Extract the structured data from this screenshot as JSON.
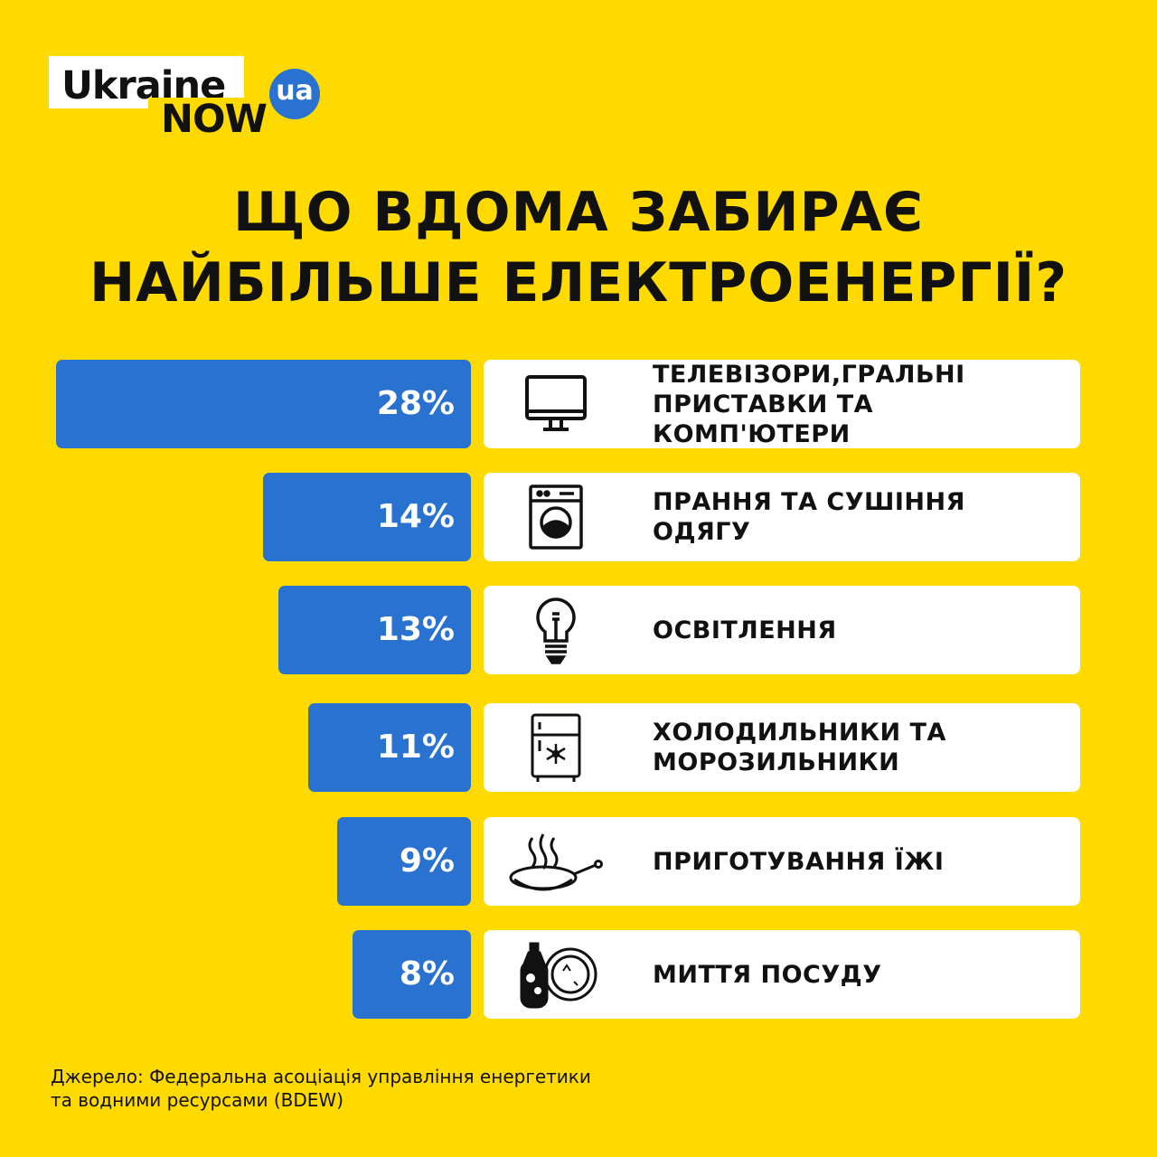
{
  "logo": {
    "line1": "Ukraine",
    "line2": "NOW",
    "badge": "ua"
  },
  "title": {
    "line1": "ЩО ВДОМА ЗАБИРАЄ",
    "line2": "НАЙБІЛЬШЕ ЕЛЕКТРОЕНЕРГІЇ?"
  },
  "chart_data": {
    "type": "bar",
    "orientation": "horizontal",
    "categories": [
      "ТЕЛЕВІЗОРИ,ГРАЛЬНІ ПРИСТАВКИ ТА КОМП'ЮТЕРИ",
      "ПРАННЯ ТА СУШІННЯ ОДЯГУ",
      "ОСВІТЛЕННЯ",
      "ХОЛОДИЛЬНИКИ ТА МОРОЗИЛЬНИКИ",
      "ПРИГОТУВАННЯ ЇЖІ",
      "МИТТЯ ПОСУДУ"
    ],
    "label_lines": [
      [
        "ТЕЛЕВІЗОРИ,ГРАЛЬНІ",
        "ПРИСТАВКИ ТА КОМП'ЮТЕРИ"
      ],
      [
        "ПРАННЯ ТА СУШІННЯ",
        "ОДЯГУ"
      ],
      [
        "ОСВІТЛЕННЯ"
      ],
      [
        "ХОЛОДИЛЬНИКИ ТА",
        "МОРОЗИЛЬНИКИ"
      ],
      [
        "ПРИГОТУВАННЯ ЇЖІ"
      ],
      [
        "МИТТЯ ПОСУДУ"
      ]
    ],
    "values": [
      28,
      14,
      13,
      11,
      9,
      8
    ],
    "value_labels": [
      "28%",
      "14%",
      "13%",
      "11%",
      "9%",
      "8%"
    ],
    "icons": [
      "monitor-icon",
      "washing-machine-icon",
      "light-bulb-icon",
      "fridge-icon",
      "frying-pan-icon",
      "dish-soap-plate-icon"
    ],
    "bar_color": "#2A72CF"
  },
  "source": {
    "line1": "Джерело: Федеральна асоціація управління енергетики",
    "line2": "та водними ресурсами (BDEW)"
  },
  "colors": {
    "background": "#FFDA00",
    "accent": "#2A72CF",
    "card": "#FFFFFF",
    "text": "#111111"
  }
}
